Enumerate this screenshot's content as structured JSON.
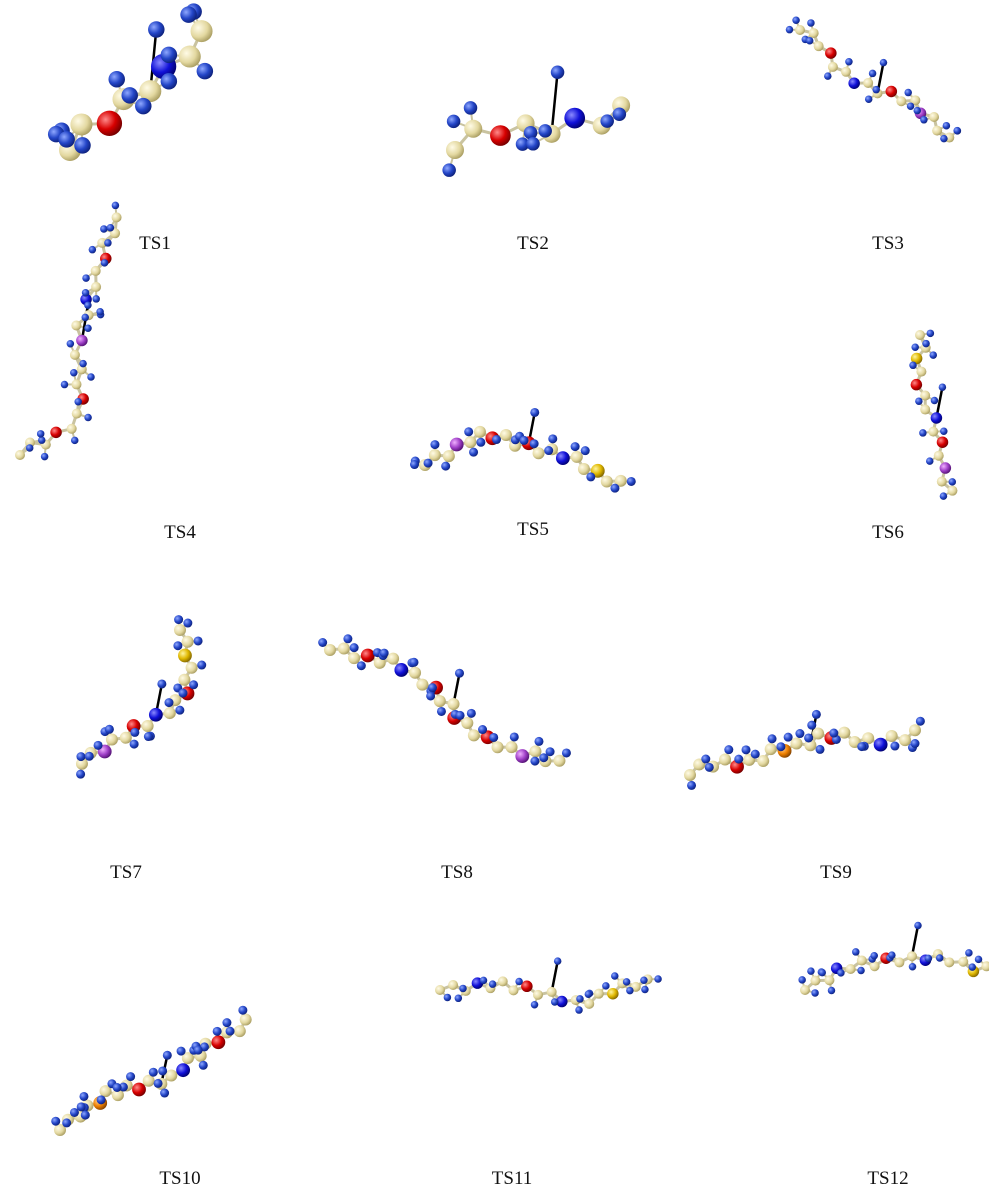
{
  "panels": [
    {
      "label": "TS1"
    },
    {
      "label": "TS2"
    },
    {
      "label": "TS3"
    },
    {
      "label": "TS4"
    },
    {
      "label": "TS5"
    },
    {
      "label": "TS6"
    },
    {
      "label": "TS7"
    },
    {
      "label": "TS8"
    },
    {
      "label": "TS9"
    },
    {
      "label": "TS10"
    },
    {
      "label": "TS11"
    },
    {
      "label": "TS12"
    }
  ]
}
